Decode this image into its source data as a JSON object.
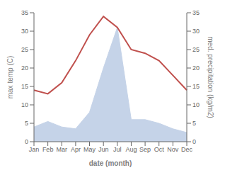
{
  "chart_data": {
    "type": "line",
    "categories": [
      "Jan",
      "Feb",
      "Mar",
      "Apr",
      "May",
      "Jun",
      "Jul",
      "Aug",
      "Sep",
      "Oct",
      "Nov",
      "Dec"
    ],
    "xlabel": "date (month)",
    "ylabel": "max temp (C)",
    "y2label": "med. precipitation (kg/m2)",
    "ylim": [
      0,
      35
    ],
    "yticks": [
      0,
      5,
      10,
      15,
      20,
      25,
      30,
      35
    ],
    "y2lim": [
      0,
      35
    ],
    "y2ticks": [
      0,
      5,
      10,
      15,
      20,
      25,
      30,
      35
    ],
    "series": [
      {
        "type": "area",
        "axis": "y2",
        "color": "#c5d3e8",
        "values": [
          4,
          5.5,
          4,
          3.5,
          8,
          20,
          31,
          6,
          6,
          5,
          3.5,
          2.5
        ]
      },
      {
        "type": "line",
        "color": "#c0504d",
        "values": [
          14,
          13,
          16,
          22,
          29,
          34,
          31,
          25,
          24,
          22,
          18,
          14
        ]
      }
    ]
  }
}
